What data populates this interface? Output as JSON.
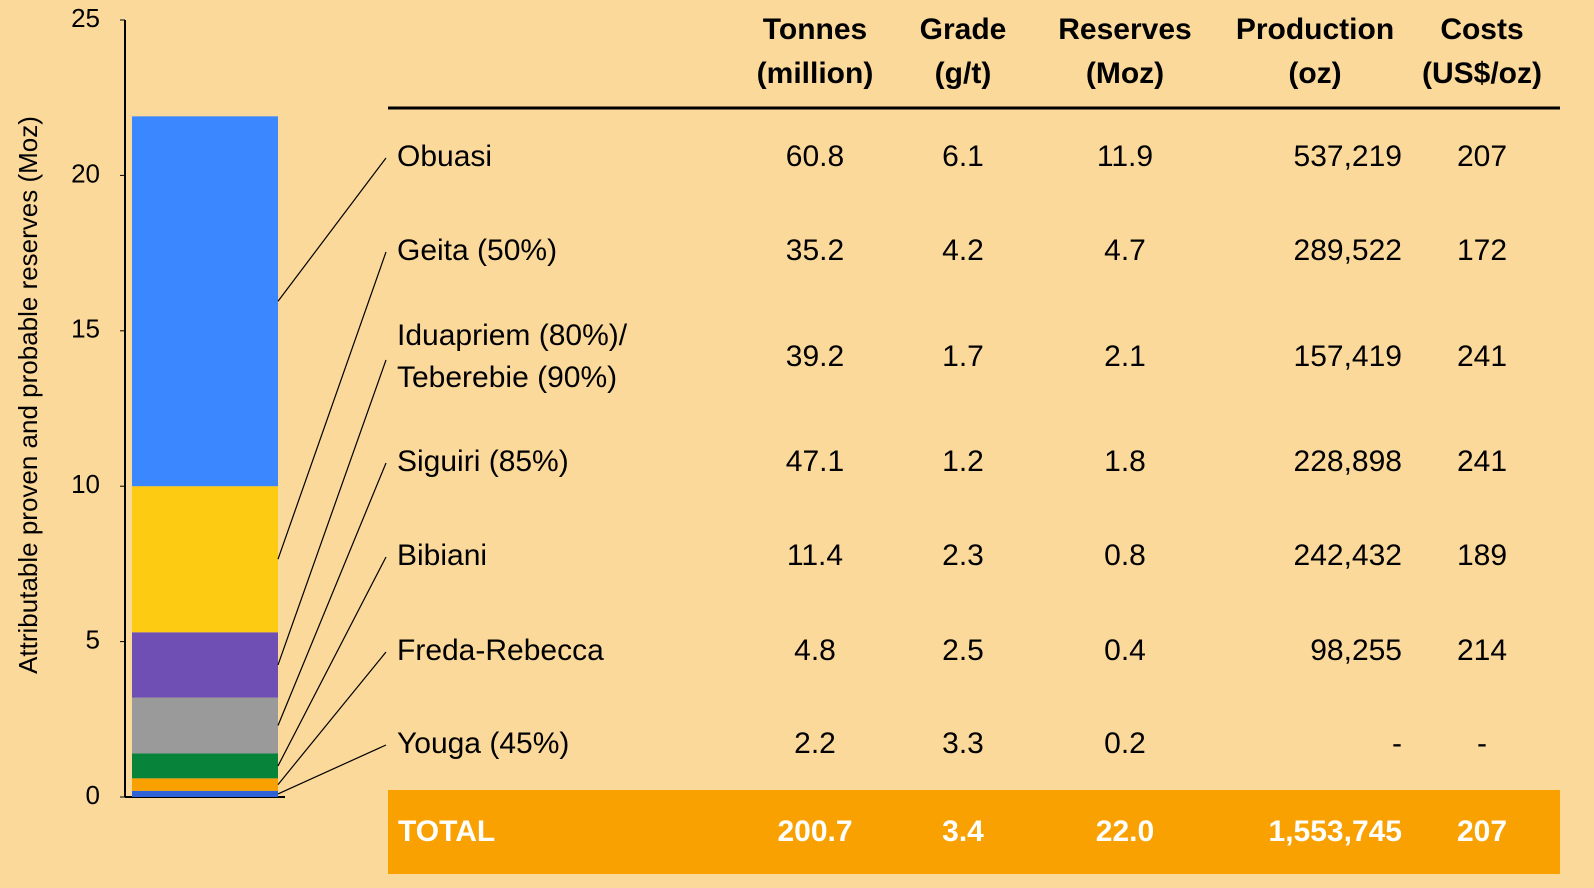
{
  "chart_data": {
    "type": "stacked_bar",
    "ylabel": "Attributable proven and probable reserves (Moz)",
    "ylim": [
      0,
      25
    ],
    "yticks": [
      0,
      5,
      10,
      15,
      20,
      25
    ],
    "headers": [
      [
        "Tonnes",
        "(million)"
      ],
      [
        "Grade",
        "(g/t)"
      ],
      [
        "Reserves",
        "(Moz)"
      ],
      [
        "Production",
        "(oz)"
      ],
      [
        "Costs",
        "(US$/oz)"
      ]
    ],
    "rows": [
      {
        "name": [
          "Obuasi"
        ],
        "color": "#3a87ff",
        "tonnes": 60.8,
        "grade": 6.1,
        "reserves": 11.9,
        "production": "537,219",
        "costs": 207
      },
      {
        "name": [
          "Geita (50%)"
        ],
        "color": "#fdcb12",
        "tonnes": 35.2,
        "grade": 4.2,
        "reserves": 4.7,
        "production": "289,522",
        "costs": 172
      },
      {
        "name": [
          "Iduapriem (80%)/",
          "Teberebie (90%)"
        ],
        "color": "#704fb5",
        "tonnes": 39.2,
        "grade": 1.7,
        "reserves": 2.1,
        "production": "157,419",
        "costs": 241
      },
      {
        "name": [
          "Siguiri (85%)"
        ],
        "color": "#9a9a9a",
        "tonnes": 47.1,
        "grade": 1.2,
        "reserves": 1.8,
        "production": "228,898",
        "costs": 241
      },
      {
        "name": [
          "Bibiani"
        ],
        "color": "#08833a",
        "tonnes": 11.4,
        "grade": 2.3,
        "reserves": 0.8,
        "production": "242,432",
        "costs": 189
      },
      {
        "name": [
          "Freda-Rebecca"
        ],
        "color": "#f9a100",
        "tonnes": 4.8,
        "grade": 2.5,
        "reserves": 0.4,
        "production": "98,255",
        "costs": 214
      },
      {
        "name": [
          "Youga (45%)"
        ],
        "color": "#2f62d6",
        "tonnes": 2.2,
        "grade": 3.3,
        "reserves": 0.2,
        "production": "-",
        "costs": "-"
      }
    ],
    "total": {
      "name": "TOTAL",
      "tonnes": 200.7,
      "grade": 3.4,
      "reserves": "22.0",
      "production": "1,553,745",
      "costs": 207
    }
  }
}
